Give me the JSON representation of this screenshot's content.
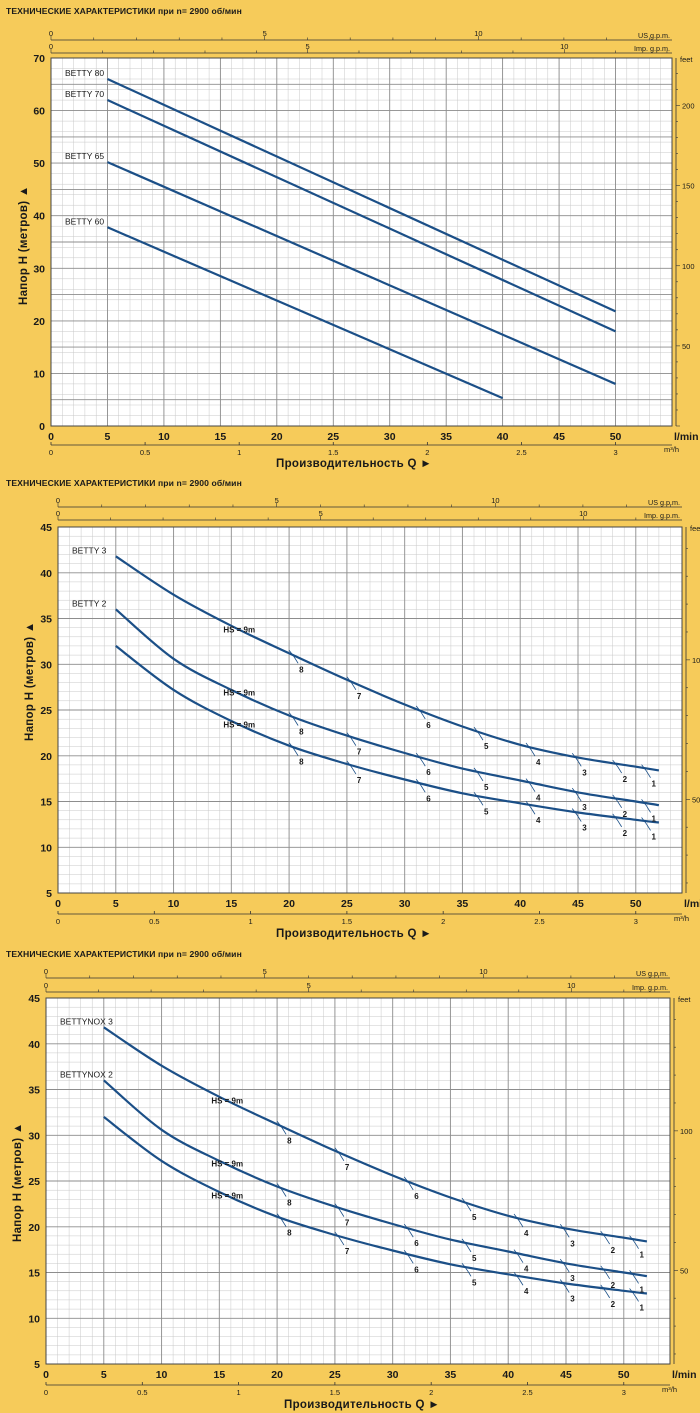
{
  "colors": {
    "background": "#f6cb5a",
    "plot_bg": "#ffffff",
    "grid_minor": "#c9c9c9",
    "grid_major": "#8d8d8d",
    "curve": "#1b4f87",
    "text": "#1a1a1a"
  },
  "chart_data": [
    {
      "type": "line",
      "title": "ТЕХНИЧЕСКИЕ ХАРАКТЕРИСТИКИ при n= 2900 об/мин",
      "xlabel": "Производительность  Q",
      "ylabel": "Напор H   (метров)",
      "x_unit": "l/min",
      "x2_unit": "m³/h",
      "top1_unit": "US g.p.m.",
      "top2_unit": "Imp. g.p.m.",
      "y_right_unit": "feet",
      "xlim": [
        0,
        55
      ],
      "ylim": [
        0,
        70
      ],
      "x_ticks": [
        "0",
        "5",
        "10",
        "15",
        "20",
        "25",
        "30",
        "35",
        "40",
        "45",
        "50"
      ],
      "y_ticks": [
        "0",
        "10",
        "20",
        "30",
        "40",
        "50",
        "60",
        "70"
      ],
      "m3h_ticks": [
        "0",
        "0.5",
        "1",
        "1.5",
        "2",
        "2.5",
        "3"
      ],
      "usgpm_ticks": [
        "0",
        "5",
        "10"
      ],
      "impgpm_ticks": [
        "0",
        "5",
        "10"
      ],
      "feet_ticks": [
        "50",
        "100",
        "150",
        "200"
      ],
      "series": [
        {
          "name": "BETTY 80",
          "x": [
            5,
            50
          ],
          "y": [
            66,
            21.8
          ]
        },
        {
          "name": "BETTY 70",
          "x": [
            5,
            50
          ],
          "y": [
            62,
            18
          ]
        },
        {
          "name": "BETTY 65",
          "x": [
            5,
            50
          ],
          "y": [
            50.2,
            8
          ]
        },
        {
          "name": "BETTY 60",
          "x": [
            5,
            40
          ],
          "y": [
            37.8,
            5.3
          ]
        }
      ],
      "annotations": []
    },
    {
      "type": "line",
      "title": "ТЕХНИЧЕСКИЕ ХАРАКТЕРИСТИКИ при n= 2900 об/мин",
      "xlabel": "Производительность  Q",
      "ylabel": "Напор H   (метров)",
      "x_unit": "l/min",
      "x2_unit": "m³/h",
      "top1_unit": "US g.p.m.",
      "top2_unit": "Imp. g.p.m.",
      "y_right_unit": "feet",
      "xlim": [
        0,
        54
      ],
      "ylim": [
        5,
        45
      ],
      "x_ticks": [
        "0",
        "5",
        "10",
        "15",
        "20",
        "25",
        "30",
        "35",
        "40",
        "45",
        "50"
      ],
      "y_ticks": [
        "5",
        "10",
        "15",
        "20",
        "25",
        "30",
        "35",
        "40",
        "45"
      ],
      "m3h_ticks": [
        "0",
        "0.5",
        "1",
        "1.5",
        "2",
        "2.5",
        "3"
      ],
      "usgpm_ticks": [
        "0",
        "5",
        "10"
      ],
      "impgpm_ticks": [
        "0",
        "5",
        "10"
      ],
      "feet_ticks": [
        "50",
        "100"
      ],
      "series": [
        {
          "name": "BETTY 3",
          "x": [
            5,
            10,
            15,
            20,
            25,
            30,
            35,
            40,
            45,
            50,
            52
          ],
          "y": [
            41.8,
            37.6,
            34.2,
            31.2,
            28.3,
            25.6,
            23.2,
            21.2,
            19.8,
            18.8,
            18.4
          ]
        },
        {
          "name": "BETTY 2",
          "x": [
            5,
            10,
            15,
            20,
            25,
            30,
            35,
            40,
            45,
            50,
            52
          ],
          "y": [
            36,
            30.6,
            27.2,
            24.4,
            22.2,
            20.3,
            18.6,
            17.3,
            16,
            15,
            14.6
          ]
        },
        {
          "name": "",
          "x": [
            5,
            10,
            15,
            20,
            25,
            30,
            35,
            40,
            45,
            50,
            52
          ],
          "y": [
            32,
            27.2,
            23.8,
            21.1,
            19.1,
            17.4,
            15.9,
            14.8,
            13.8,
            13,
            12.7
          ]
        }
      ],
      "annotations": [
        {
          "text": "HS = 9m",
          "x": 15,
          "y": 33.7
        },
        {
          "text": "HS = 9m",
          "x": 15,
          "y": 26.8
        },
        {
          "text": "HS = 9m",
          "x": 15,
          "y": 23.3
        },
        {
          "series": 0,
          "x": 20,
          "text": "8"
        },
        {
          "series": 0,
          "x": 25,
          "text": "7"
        },
        {
          "series": 0,
          "x": 31,
          "text": "6"
        },
        {
          "series": 0,
          "x": 36,
          "text": "5"
        },
        {
          "series": 0,
          "x": 40.5,
          "text": "4"
        },
        {
          "series": 0,
          "x": 44.5,
          "text": "3"
        },
        {
          "series": 0,
          "x": 48,
          "text": "2"
        },
        {
          "series": 0,
          "x": 50.5,
          "text": "1"
        },
        {
          "series": 1,
          "x": 20,
          "text": "8"
        },
        {
          "series": 1,
          "x": 25,
          "text": "7"
        },
        {
          "series": 1,
          "x": 31,
          "text": "6"
        },
        {
          "series": 1,
          "x": 36,
          "text": "5"
        },
        {
          "series": 1,
          "x": 40.5,
          "text": "4"
        },
        {
          "series": 1,
          "x": 44.5,
          "text": "3"
        },
        {
          "series": 1,
          "x": 48,
          "text": "2"
        },
        {
          "series": 1,
          "x": 50.5,
          "text": "1"
        },
        {
          "series": 2,
          "x": 20,
          "text": "8"
        },
        {
          "series": 2,
          "x": 25,
          "text": "7"
        },
        {
          "series": 2,
          "x": 31,
          "text": "6"
        },
        {
          "series": 2,
          "x": 36,
          "text": "5"
        },
        {
          "series": 2,
          "x": 40.5,
          "text": "4"
        },
        {
          "series": 2,
          "x": 44.5,
          "text": "3"
        },
        {
          "series": 2,
          "x": 48,
          "text": "2"
        },
        {
          "series": 2,
          "x": 50.5,
          "text": "1"
        }
      ]
    },
    {
      "type": "line",
      "title": "ТЕХНИЧЕСКИЕ ХАРАКТЕРИСТИКИ при n= 2900 об/мин",
      "xlabel": "Производительность  Q",
      "ylabel": "Напор H   (метров)",
      "x_unit": "l/min",
      "x2_unit": "m³/h",
      "top1_unit": "US g.p.m.",
      "top2_unit": "Imp. g.p.m.",
      "y_right_unit": "feet",
      "xlim": [
        0,
        54
      ],
      "ylim": [
        5,
        45
      ],
      "x_ticks": [
        "0",
        "5",
        "10",
        "15",
        "20",
        "25",
        "30",
        "35",
        "40",
        "45",
        "50"
      ],
      "y_ticks": [
        "5",
        "10",
        "15",
        "20",
        "25",
        "30",
        "35",
        "40",
        "45"
      ],
      "m3h_ticks": [
        "0",
        "0.5",
        "1",
        "1.5",
        "2",
        "2.5",
        "3"
      ],
      "usgpm_ticks": [
        "0",
        "5",
        "10"
      ],
      "impgpm_ticks": [
        "0",
        "5",
        "10"
      ],
      "feet_ticks": [
        "50",
        "100"
      ],
      "series": [
        {
          "name": "BETTYNOX 3",
          "x": [
            5,
            10,
            15,
            20,
            25,
            30,
            35,
            40,
            45,
            50,
            52
          ],
          "y": [
            41.8,
            37.6,
            34.2,
            31.2,
            28.3,
            25.6,
            23.2,
            21.2,
            19.8,
            18.8,
            18.4
          ]
        },
        {
          "name": "BETTYNOX 2",
          "x": [
            5,
            10,
            15,
            20,
            25,
            30,
            35,
            40,
            45,
            50,
            52
          ],
          "y": [
            36,
            30.6,
            27.2,
            24.4,
            22.2,
            20.3,
            18.6,
            17.3,
            16,
            15,
            14.6
          ]
        },
        {
          "name": "",
          "x": [
            5,
            10,
            15,
            20,
            25,
            30,
            35,
            40,
            45,
            50,
            52
          ],
          "y": [
            32,
            27.2,
            23.8,
            21.1,
            19.1,
            17.4,
            15.9,
            14.8,
            13.8,
            13,
            12.7
          ]
        }
      ],
      "annotations": [
        {
          "text": "HS = 9m",
          "x": 15,
          "y": 33.7
        },
        {
          "text": "HS = 9m",
          "x": 15,
          "y": 26.8
        },
        {
          "text": "HS = 9m",
          "x": 15,
          "y": 23.3
        },
        {
          "series": 0,
          "x": 20,
          "text": "8"
        },
        {
          "series": 0,
          "x": 25,
          "text": "7"
        },
        {
          "series": 0,
          "x": 31,
          "text": "6"
        },
        {
          "series": 0,
          "x": 36,
          "text": "5"
        },
        {
          "series": 0,
          "x": 40.5,
          "text": "4"
        },
        {
          "series": 0,
          "x": 44.5,
          "text": "3"
        },
        {
          "series": 0,
          "x": 48,
          "text": "2"
        },
        {
          "series": 0,
          "x": 50.5,
          "text": "1"
        },
        {
          "series": 1,
          "x": 20,
          "text": "8"
        },
        {
          "series": 1,
          "x": 25,
          "text": "7"
        },
        {
          "series": 1,
          "x": 31,
          "text": "6"
        },
        {
          "series": 1,
          "x": 36,
          "text": "5"
        },
        {
          "series": 1,
          "x": 40.5,
          "text": "4"
        },
        {
          "series": 1,
          "x": 44.5,
          "text": "3"
        },
        {
          "series": 1,
          "x": 48,
          "text": "2"
        },
        {
          "series": 1,
          "x": 50.5,
          "text": "1"
        },
        {
          "series": 2,
          "x": 20,
          "text": "8"
        },
        {
          "series": 2,
          "x": 25,
          "text": "7"
        },
        {
          "series": 2,
          "x": 31,
          "text": "6"
        },
        {
          "series": 2,
          "x": 36,
          "text": "5"
        },
        {
          "series": 2,
          "x": 40.5,
          "text": "4"
        },
        {
          "series": 2,
          "x": 44.5,
          "text": "3"
        },
        {
          "series": 2,
          "x": 48,
          "text": "2"
        },
        {
          "series": 2,
          "x": 50.5,
          "text": "1"
        }
      ]
    }
  ]
}
